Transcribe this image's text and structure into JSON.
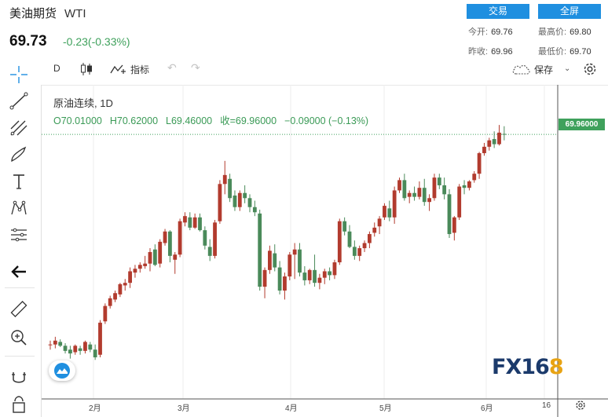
{
  "header": {
    "title": "美油期货",
    "symbol": "WTI",
    "price": "69.73",
    "change": "-0.23(-0.33%)",
    "trade_button": "交易",
    "fullscreen_button": "全屏",
    "quotes": {
      "open_label": "今开:",
      "open": "69.76",
      "high_label": "最高价:",
      "high": "69.80",
      "prev_label": "昨收:",
      "prev": "69.96",
      "low_label": "最低价:",
      "low": "69.70"
    }
  },
  "toolbar": {
    "interval": "D",
    "indicators": "指标",
    "save": "保存"
  },
  "legend": {
    "title": "原油连续, 1D",
    "open": "O70.01000",
    "high": "H70.62000",
    "low": "L69.46000",
    "close": "收=69.96000",
    "change": "−0.09000 (−0.13%)"
  },
  "price_tag": "69.96000",
  "x_labels": [
    "2月",
    "3月",
    "4月",
    "5月",
    "6月",
    "16"
  ],
  "logo": {
    "main": "FX16",
    "accent": "8"
  },
  "colors": {
    "up": "#b23b2e",
    "down": "#4a8a5a",
    "accent": "#1f8fe0"
  },
  "chart_data": {
    "type": "candlestick",
    "title": "原油连续, 1D",
    "xlabel": "",
    "ylabel": "",
    "x_ticks": [
      "2月",
      "3月",
      "4月",
      "5月",
      "6月",
      "16"
    ],
    "last_close": 69.96,
    "candles": [
      [
        53.6,
        53.9,
        53.2,
        53.6
      ],
      [
        53.6,
        54.2,
        53.3,
        53.9
      ],
      [
        53.8,
        54.0,
        53.4,
        53.5
      ],
      [
        53.5,
        53.7,
        52.9,
        53.1
      ],
      [
        53.2,
        53.5,
        52.5,
        52.9
      ],
      [
        53.0,
        53.6,
        52.8,
        53.5
      ],
      [
        53.3,
        53.5,
        52.8,
        53.1
      ],
      [
        53.1,
        53.9,
        52.9,
        53.8
      ],
      [
        53.6,
        53.8,
        53.0,
        53.2
      ],
      [
        53.2,
        53.6,
        52.4,
        52.6
      ],
      [
        52.8,
        55.5,
        52.6,
        55.3
      ],
      [
        55.4,
        56.8,
        55.2,
        56.6
      ],
      [
        56.6,
        57.4,
        56.4,
        57.2
      ],
      [
        57.1,
        57.8,
        56.9,
        57.6
      ],
      [
        57.5,
        58.4,
        57.3,
        58.3
      ],
      [
        58.2,
        58.7,
        57.8,
        58.4
      ],
      [
        58.4,
        59.6,
        58.0,
        59.3
      ],
      [
        59.2,
        59.8,
        58.8,
        59.5
      ],
      [
        59.5,
        60.0,
        59.2,
        59.8
      ],
      [
        59.7,
        60.5,
        59.5,
        59.9
      ],
      [
        59.9,
        61.1,
        59.3,
        60.8
      ],
      [
        61.0,
        61.4,
        59.7,
        59.8
      ],
      [
        59.9,
        61.8,
        59.6,
        61.6
      ],
      [
        61.5,
        62.6,
        61.3,
        62.4
      ],
      [
        62.4,
        62.5,
        60.0,
        60.5
      ],
      [
        60.2,
        60.8,
        59.1,
        60.6
      ],
      [
        60.6,
        63.4,
        60.4,
        63.2
      ],
      [
        63.1,
        63.9,
        62.8,
        63.6
      ],
      [
        63.5,
        63.9,
        62.5,
        62.7
      ],
      [
        62.7,
        63.8,
        62.6,
        63.5
      ],
      [
        63.5,
        63.8,
        62.4,
        62.5
      ],
      [
        62.5,
        62.8,
        61.0,
        61.3
      ],
      [
        61.2,
        61.8,
        60.1,
        60.5
      ],
      [
        60.5,
        63.3,
        60.3,
        63.1
      ],
      [
        63.2,
        66.4,
        63.0,
        66.1
      ],
      [
        66.1,
        67.9,
        65.3,
        66.8
      ],
      [
        66.5,
        66.9,
        64.7,
        65.0
      ],
      [
        65.2,
        65.6,
        64.0,
        64.3
      ],
      [
        64.3,
        65.6,
        64.0,
        65.4
      ],
      [
        65.4,
        66.0,
        64.6,
        65.0
      ],
      [
        65.0,
        65.3,
        63.9,
        64.3
      ],
      [
        64.3,
        64.8,
        63.6,
        63.9
      ],
      [
        63.8,
        64.1,
        57.8,
        58.1
      ],
      [
        58.1,
        59.6,
        57.2,
        59.4
      ],
      [
        59.4,
        61.3,
        59.1,
        60.9
      ],
      [
        60.7,
        61.4,
        59.3,
        59.6
      ],
      [
        59.6,
        60.1,
        57.5,
        57.8
      ],
      [
        57.8,
        59.2,
        57.1,
        58.9
      ],
      [
        58.9,
        60.8,
        58.6,
        60.6
      ],
      [
        60.6,
        61.5,
        58.7,
        61.0
      ],
      [
        61.0,
        61.5,
        58.9,
        59.2
      ],
      [
        59.2,
        59.7,
        58.2,
        58.6
      ],
      [
        58.6,
        59.5,
        58.3,
        59.4
      ],
      [
        59.4,
        60.6,
        58.1,
        58.4
      ],
      [
        58.4,
        59.1,
        57.9,
        58.8
      ],
      [
        58.8,
        59.5,
        58.3,
        59.3
      ],
      [
        59.3,
        59.6,
        58.6,
        59.0
      ],
      [
        59.0,
        60.2,
        58.7,
        60.0
      ],
      [
        60.0,
        63.4,
        59.8,
        63.2
      ],
      [
        63.2,
        63.5,
        62.1,
        62.4
      ],
      [
        62.4,
        62.9,
        61.1,
        61.2
      ],
      [
        61.2,
        61.7,
        60.2,
        60.5
      ],
      [
        60.5,
        61.3,
        60.1,
        61.1
      ],
      [
        61.1,
        61.7,
        60.8,
        61.5
      ],
      [
        61.5,
        62.4,
        61.1,
        62.2
      ],
      [
        62.3,
        63.1,
        62.0,
        62.7
      ],
      [
        62.8,
        63.6,
        62.2,
        63.4
      ],
      [
        63.5,
        64.6,
        63.3,
        64.4
      ],
      [
        64.2,
        64.8,
        63.2,
        63.5
      ],
      [
        63.5,
        65.9,
        63.0,
        65.6
      ],
      [
        65.6,
        66.6,
        65.4,
        66.4
      ],
      [
        66.4,
        66.9,
        64.8,
        65.0
      ],
      [
        65.1,
        65.6,
        64.6,
        65.4
      ],
      [
        65.4,
        65.9,
        64.8,
        65.1
      ],
      [
        65.1,
        66.3,
        64.9,
        65.8
      ],
      [
        65.8,
        66.5,
        64.4,
        64.7
      ],
      [
        64.7,
        65.3,
        64.0,
        65.0
      ],
      [
        65.0,
        66.9,
        64.8,
        66.6
      ],
      [
        66.6,
        66.9,
        65.7,
        66.0
      ],
      [
        66.0,
        66.6,
        64.9,
        65.3
      ],
      [
        65.3,
        65.7,
        61.9,
        62.2
      ],
      [
        62.3,
        63.6,
        61.7,
        63.5
      ],
      [
        63.5,
        66.1,
        63.3,
        65.9
      ],
      [
        66.0,
        66.4,
        65.3,
        65.8
      ],
      [
        65.8,
        66.4,
        65.6,
        66.3
      ],
      [
        66.4,
        67.1,
        66.2,
        66.9
      ],
      [
        66.9,
        68.6,
        66.5,
        68.5
      ],
      [
        68.5,
        69.3,
        68.3,
        69.0
      ],
      [
        69.0,
        69.7,
        68.7,
        69.5
      ],
      [
        69.6,
        70.2,
        68.9,
        69.2
      ],
      [
        69.2,
        70.7,
        69.1,
        70.1
      ],
      [
        70.0,
        70.6,
        69.5,
        69.96
      ]
    ]
  }
}
